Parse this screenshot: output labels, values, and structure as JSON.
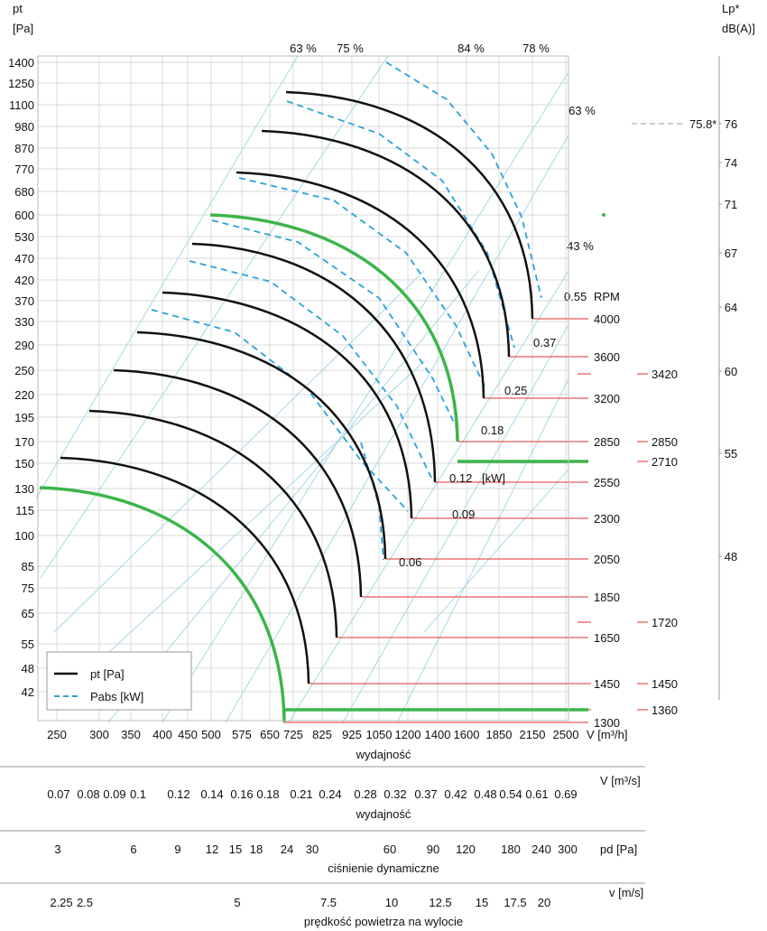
{
  "chart_data": {
    "type": "line",
    "y_axis": {
      "title_line1": "pt",
      "title_line2": "[Pa]",
      "scale": "log",
      "ticks": [
        "1400",
        "1250",
        "1100",
        "980",
        "870",
        "770",
        "680",
        "600",
        "530",
        "470",
        "420",
        "370",
        "330",
        "290",
        "250",
        "220",
        "195",
        "170",
        "150",
        "130",
        "115",
        "100",
        "85",
        "75",
        "65",
        "55",
        "48",
        "42"
      ]
    },
    "x_axis": {
      "scale": "log",
      "ticks": [
        "250",
        "300",
        "350",
        "400",
        "450",
        "500",
        "575",
        "650",
        "725",
        "825",
        "925",
        "1050",
        "1200",
        "1400",
        "1600",
        "1850",
        "2150",
        "2500"
      ],
      "unit": "V [m³/h]",
      "label": "wydajność"
    },
    "flow_m3s": {
      "ticks": [
        "0.07",
        "0.08",
        "0.09",
        "0.1",
        "0.12",
        "0.14",
        "0.16",
        "0.18",
        "0.21",
        "0.24",
        "0.28",
        "0.32",
        "0.37",
        "0.42",
        "0.48",
        "0.54",
        "0.61",
        "0.69"
      ],
      "unit": "V  [m³/s]",
      "label": "wydajność"
    },
    "dynamic_pressure": {
      "ticks": [
        "3",
        "6",
        "9",
        "12",
        "15",
        "18",
        "24",
        "30",
        "60",
        "90",
        "120",
        "180",
        "240",
        "300"
      ],
      "unit": "pd  [Pa]",
      "label": "ciśnienie dynamiczne"
    },
    "outlet_velocity": {
      "ticks": [
        "2.25",
        "2.5",
        "5",
        "7.5",
        "10",
        "12.5",
        "15",
        "17.5",
        "20"
      ],
      "unit": "v  [m/s]",
      "label": "prędkość powietrza na wylocie"
    },
    "noise_axis": {
      "title_line1": "Lp*",
      "title_line2": "dB(A)]",
      "ticks": [
        "76",
        "74",
        "71",
        "67",
        "64",
        "60",
        "55",
        "48"
      ],
      "marker": "75.8*"
    },
    "efficiency_labels": [
      "63 %",
      "75 %",
      "84 %",
      "78 %",
      "63 %",
      "43 %"
    ],
    "rpm_title": "RPM",
    "rpm_curves": [
      "4000",
      "3600",
      "3200",
      "2850",
      "2550",
      "2300",
      "2050",
      "1850",
      "1650",
      "1450",
      "1300"
    ],
    "rpm_highlight": [
      "2850",
      "1300"
    ],
    "rpm_noise": [
      "3420",
      "2850",
      "2710",
      "1720",
      "1450",
      "1360"
    ],
    "power_labels": [
      "0.55",
      "0.37",
      "0.25",
      "0.18",
      "0.12",
      "[kW]",
      "0.09",
      "0.06"
    ],
    "legend": {
      "solid": "pt [Pa]",
      "dashed": "Pabs [kW]"
    },
    "colors": {
      "curve": "#111111",
      "highlight": "#3cb54a",
      "power": "#2aa3d8",
      "rpm_lines": "#e03030",
      "grid": "#cccccc",
      "efficiency": "#9fd4e6"
    }
  }
}
